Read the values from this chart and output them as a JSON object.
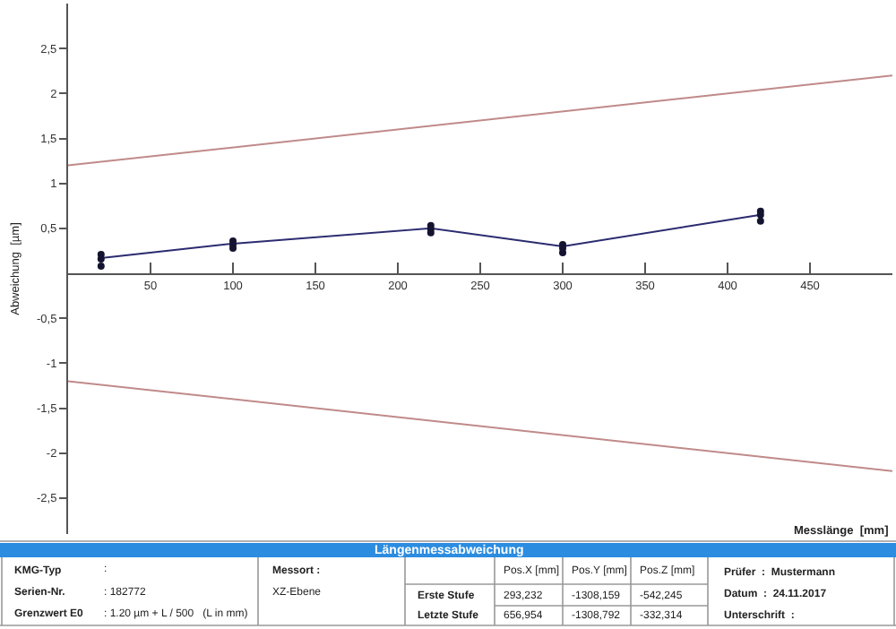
{
  "chart_data": {
    "type": "line",
    "title": "Längenmessabweichung",
    "xlabel": "Messlänge  [mm]",
    "ylabel": "Abweichung  [µm]",
    "xlim": [
      0,
      500
    ],
    "ylim": [
      -2.9,
      3.0
    ],
    "xticks": [
      50,
      100,
      150,
      200,
      250,
      300,
      350,
      400,
      450
    ],
    "yticks": [
      {
        "value": -2.5,
        "label": "-2,5"
      },
      {
        "value": -2,
        "label": "-2"
      },
      {
        "value": -1.5,
        "label": "-1,5"
      },
      {
        "value": -1,
        "label": "-1"
      },
      {
        "value": -0.5,
        "label": "-0,5"
      },
      {
        "value": 0.5,
        "label": "0,5"
      },
      {
        "value": 1,
        "label": "1"
      },
      {
        "value": 1.5,
        "label": "1,5"
      },
      {
        "value": 2,
        "label": "2"
      },
      {
        "value": 2.5,
        "label": "2,5"
      }
    ],
    "series": [
      {
        "color": "#c08a8a",
        "x": [
          0,
          500
        ],
        "values": [
          1.2,
          2.2
        ],
        "marker": "none"
      },
      {
        "color": "#c08a8a",
        "x": [
          0,
          500
        ],
        "values": [
          -1.2,
          -2.2
        ],
        "marker": "none"
      },
      {
        "color": "#2b2b70",
        "x": [
          20,
          100,
          220,
          300,
          420
        ],
        "values": [
          0.17,
          0.33,
          0.5,
          0.3,
          0.65
        ],
        "marker": "none"
      },
      {
        "type": "scatter",
        "color": "#141430",
        "x": [
          20,
          20,
          20,
          100,
          100,
          100,
          220,
          220,
          220,
          300,
          300,
          300,
          420,
          420,
          420
        ],
        "values": [
          0.21,
          0.16,
          0.08,
          0.36,
          0.32,
          0.28,
          0.53,
          0.49,
          0.45,
          0.32,
          0.28,
          0.23,
          0.69,
          0.65,
          0.58
        ],
        "marker": "circle"
      }
    ],
    "annotations": [
      "KMG-Typ",
      ":",
      "Serien-Nr.",
      ": 182772",
      "Grenzwert E0",
      ": 1.20 µm + L / 500   (L in mm)",
      "Messort :",
      "XZ-Ebene",
      "Pos.X [mm]",
      "Pos.Y [mm]",
      "Pos.Z [mm]",
      "Erste Stufe",
      "Letzte Stufe",
      "293,232",
      "-1308,159",
      "-542,245",
      "656,954",
      "-1308,792",
      "-332,314",
      "Prüfer  :  Mustermann",
      "Datum  :  24.11.2017",
      "Unterschrift  :"
    ]
  }
}
